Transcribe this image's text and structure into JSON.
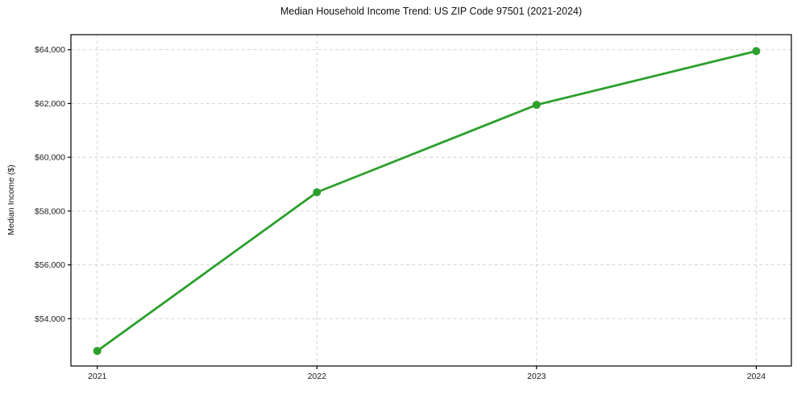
{
  "page": {
    "background": "#ffffff"
  },
  "chart_data": {
    "type": "line",
    "title": "Median Household Income Trend: US ZIP Code 97501 (2021-2024)",
    "xlabel": "",
    "ylabel": "Median Income ($)",
    "x": [
      2021,
      2022,
      2023,
      2024
    ],
    "x_tick_labels": [
      "2021",
      "2022",
      "2023",
      "2024"
    ],
    "values": [
      52800,
      58700,
      61950,
      63950
    ],
    "y_ticks": [
      54000,
      56000,
      58000,
      60000,
      62000,
      64000
    ],
    "y_tick_labels": [
      "$54,000",
      "$56,000",
      "$58,000",
      "$60,000",
      "$62,000",
      "$64,000"
    ],
    "ylim": [
      52240,
      64560
    ],
    "xlim": [
      2020.88,
      2024.16
    ],
    "grid": true,
    "grid_style": "dashed",
    "legend": "none",
    "colors": {
      "line": "#2ca02c",
      "marker": "#2ca02c",
      "grid": "#cfcfcf",
      "axis": "#000000",
      "text": "#1a1a1a"
    }
  }
}
